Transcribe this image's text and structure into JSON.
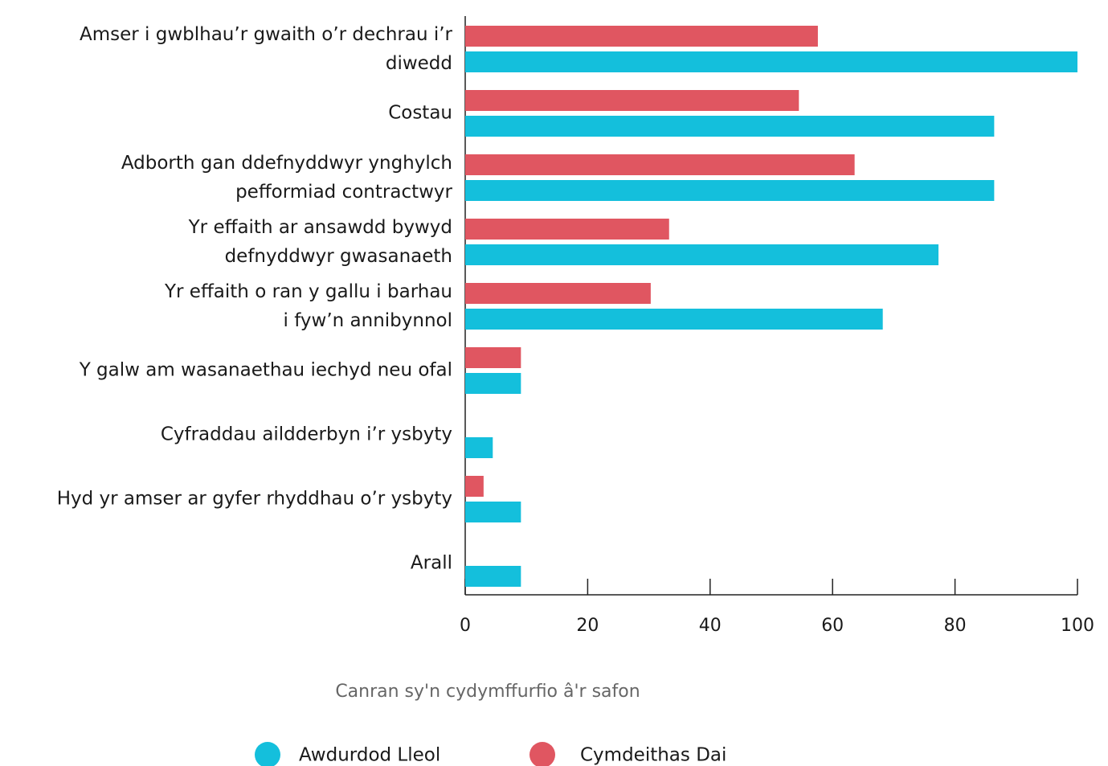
{
  "chart_data": {
    "type": "bar",
    "orientation": "horizontal",
    "x_label": "Canran sy'n cydymffurfio â'r safon",
    "categories": [
      "Amser i gwblhau’r gwaith o’r dechrau i’r\ndiwedd",
      "Costau ",
      "Adborth gan ddefnyddwyr ynghylch\npefformiad contractwyr",
      "Yr effaith ar ansawdd bywyd\ndefnyddwyr gwasanaeth",
      "Yr effaith o ran y gallu i barhau\ni fyw’n annibynnol",
      "Y galw am wasanaethau iechyd neu ofal",
      "Cyfraddau aildderbyn i’r ysbyty",
      "Hyd yr amser ar gyfer rhyddhau o’r ysbyty",
      "Arall"
    ],
    "series": [
      {
        "name": "Awdurdod Lleol",
        "color": "#14bfdc",
        "values": [
          100,
          86.4,
          86.4,
          77.3,
          68.2,
          9.1,
          4.5,
          9.1,
          9.1
        ]
      },
      {
        "name": "Cymdeithas Dai",
        "color": "#e05661",
        "values": [
          57.6,
          54.5,
          63.6,
          33.3,
          30.3,
          9.1,
          null,
          3.0,
          null
        ]
      }
    ],
    "xlim": [
      0,
      100
    ],
    "xticks": [
      0,
      20,
      40,
      60,
      80,
      100
    ],
    "legend": "bottom"
  }
}
